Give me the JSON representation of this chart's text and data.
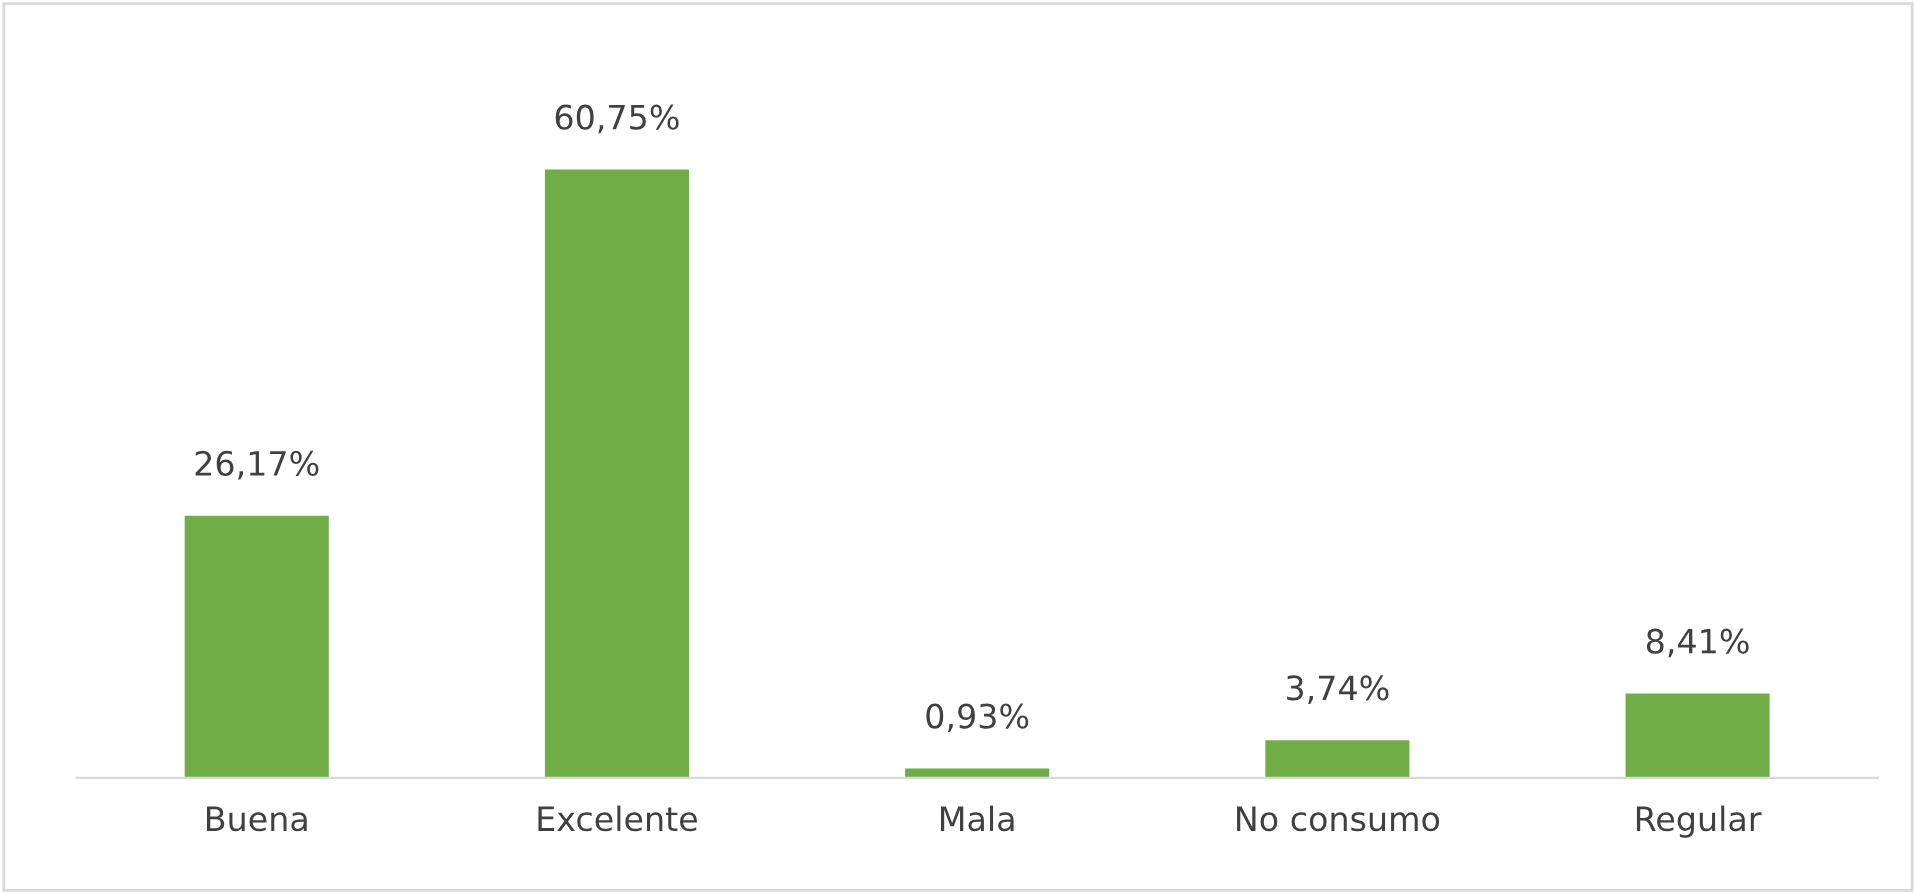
{
  "chart_data": {
    "type": "bar",
    "categories": [
      "Buena",
      "Excelente",
      "Mala",
      "No consumo",
      "Regular"
    ],
    "values": [
      26.17,
      60.75,
      0.93,
      3.74,
      8.41
    ],
    "value_labels": [
      "26,17%",
      "60,75%",
      "0,93%",
      "3,74%",
      "8,41%"
    ],
    "color": "#70ad47"
  }
}
